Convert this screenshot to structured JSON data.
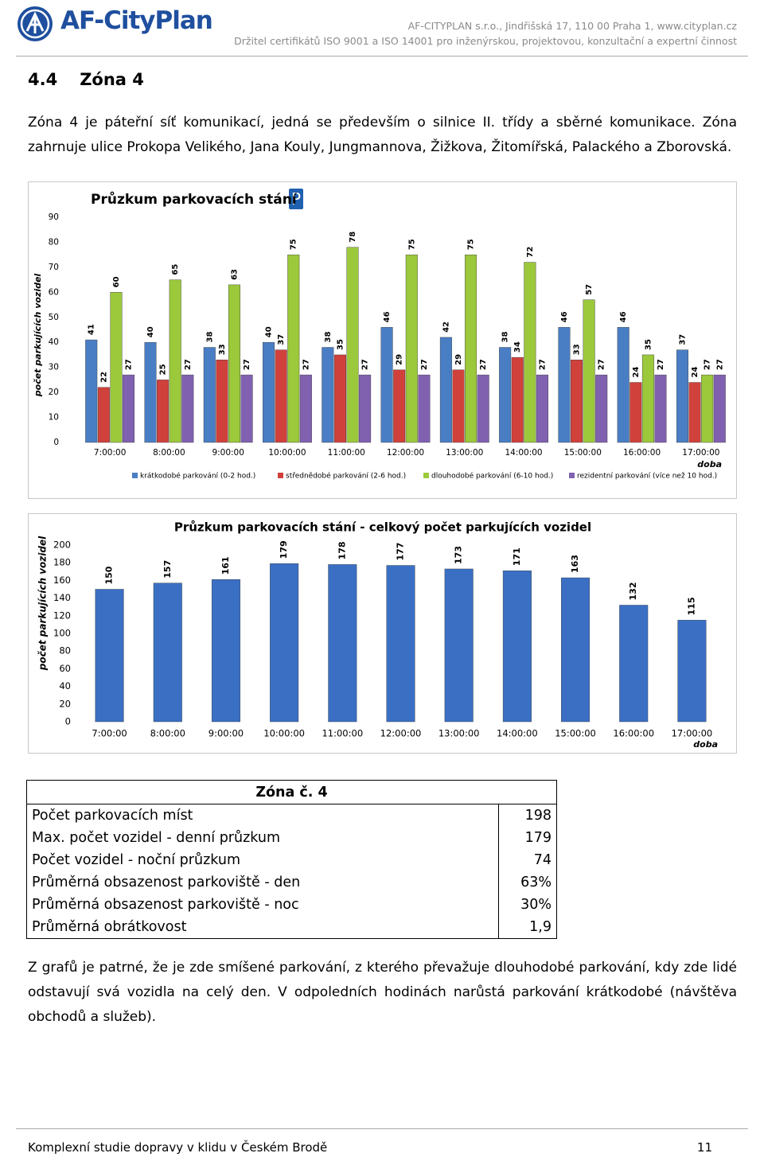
{
  "header": {
    "logo": "AF-CityPlan",
    "address": "AF-CITYPLAN s.r.o., Jindřišská 17, 110 00 Praha 1, www.cityplan.cz",
    "certificate": "Držitel certifikátů ISO 9001 a ISO 14001 pro inženýrskou, projektovou, konzultační a expertní činnost"
  },
  "section": {
    "number": "4.4",
    "title": "Zóna 4"
  },
  "paragraphs": [
    "Zóna 4 je páteřní síť komunikací, jedná se především o silnice II. třídy a sběrné komunikace. Zóna zahrnuje ulice Prokopa Velikého, Jana Kouly, Jungmannova, Žižkova, Žitomířská, Palackého a Zborovská.",
    "Z grafů je patrné, že je zde smíšené parkování, z kterého převažuje dlouhodobé parkování, kdy zde lidé odstavují svá vozidla na celý den. V odpoledních hodinách narůstá parkování krátkodobé (návštěva obchodů a služeb)."
  ],
  "chart_data": [
    {
      "type": "bar",
      "title": "Průzkum parkovacích stání",
      "y_label": "počet parkujících vozidel",
      "x_label": "doba",
      "categories": [
        "7:00:00",
        "8:00:00",
        "9:00:00",
        "10:00:00",
        "11:00:00",
        "12:00:00",
        "13:00:00",
        "14:00:00",
        "15:00:00",
        "16:00:00",
        "17:00:00"
      ],
      "series": [
        {
          "name": "krátkodobé parkování (0-2 hod.)",
          "color": "#4a7ec4",
          "values": [
            41,
            40,
            38,
            40,
            38,
            46,
            42,
            38,
            46,
            46,
            37
          ]
        },
        {
          "name": "střednědobé parkování (2-6 hod.)",
          "color": "#d0413c",
          "values": [
            22,
            25,
            33,
            37,
            35,
            29,
            29,
            34,
            33,
            24,
            24
          ]
        },
        {
          "name": "dlouhodobé parkování (6-10 hod.)",
          "color": "#9cc83c",
          "values": [
            60,
            65,
            63,
            75,
            78,
            75,
            75,
            72,
            57,
            35,
            27
          ]
        },
        {
          "name": "rezidentní parkování (více než 10 hod.)",
          "color": "#8061b0",
          "values": [
            27,
            27,
            27,
            27,
            27,
            27,
            27,
            27,
            27,
            27,
            27
          ]
        }
      ],
      "ylim": [
        0,
        90
      ],
      "yticks": [
        0,
        10,
        20,
        30,
        40,
        50,
        60,
        70,
        80,
        90
      ],
      "legend": "bottom"
    },
    {
      "type": "bar",
      "title": "Průzkum parkovacích stání - celkový počet parkujících vozidel",
      "y_label": "počet parkujících vozidel",
      "x_label": "doba",
      "categories": [
        "7:00:00",
        "8:00:00",
        "9:00:00",
        "10:00:00",
        "11:00:00",
        "12:00:00",
        "13:00:00",
        "14:00:00",
        "15:00:00",
        "16:00:00",
        "17:00:00"
      ],
      "values": [
        150,
        157,
        161,
        179,
        178,
        177,
        173,
        171,
        163,
        132,
        115
      ],
      "color": "#3a6fc4",
      "ylim": [
        0,
        200
      ],
      "yticks": [
        0,
        20,
        40,
        60,
        80,
        100,
        120,
        140,
        160,
        180,
        200
      ]
    }
  ],
  "table": {
    "title": "Zóna č. 4",
    "rows": [
      [
        "Počet parkovacích míst",
        "198"
      ],
      [
        "Max. počet vozidel - denní průzkum",
        "179"
      ],
      [
        "Počet vozidel - noční průzkum",
        "74"
      ],
      [
        "Průměrná obsazenost parkoviště - den",
        "63%"
      ],
      [
        "Průměrná obsazenost parkoviště - noc",
        "30%"
      ],
      [
        "Průměrná obrátkovost",
        "1,9"
      ]
    ]
  },
  "footer": {
    "text": "Komplexní studie dopravy v klidu v Českém Brodě",
    "page": "11"
  }
}
